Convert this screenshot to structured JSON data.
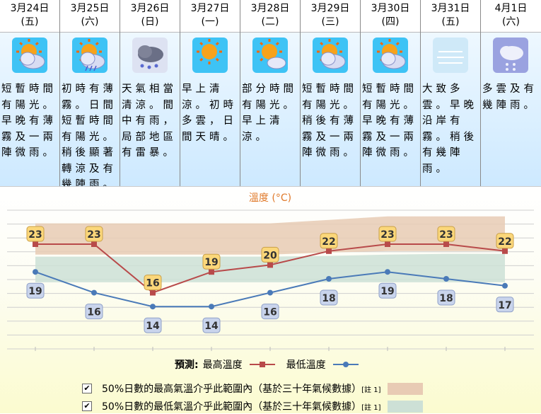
{
  "days": [
    {
      "date": "3月24日",
      "weekday": "(五)",
      "icon": "sunny-periods-cloud-icon",
      "desc": "短暫時間有陽光。早晚有薄霧及一兩陣微雨。"
    },
    {
      "date": "3月25日",
      "weekday": "(六)",
      "icon": "sunny-periods-showers-icon",
      "desc": "初時有薄霧。日間短暫時間有陽光。稍後顯著轉涼及有幾陣雨。"
    },
    {
      "date": "3月26日",
      "weekday": "(日)",
      "icon": "heavy-showers-icon",
      "desc": "天氣相當清涼。間中有雨，局部地區有雷暴。"
    },
    {
      "date": "3月27日",
      "weekday": "(一)",
      "icon": "sunny-icon",
      "desc": "早上清涼。初時多雲，日間天晴。"
    },
    {
      "date": "3月28日",
      "weekday": "(二)",
      "icon": "sunny-periods-icon",
      "desc": "部分時間有陽光。早上清涼。"
    },
    {
      "date": "3月29日",
      "weekday": "(三)",
      "icon": "sunny-periods-cloud-icon",
      "desc": "短暫時間有陽光。稍後有薄霧及一兩陣微雨。"
    },
    {
      "date": "3月30日",
      "weekday": "(四)",
      "icon": "sunny-periods-cloud-icon",
      "desc": "短暫時間有陽光。早晚有薄霧及一兩陣微雨。"
    },
    {
      "date": "3月31日",
      "weekday": "(五)",
      "icon": "mist-icon",
      "desc": "大致多雲。早晚沿岸有霧。稍後有幾陣雨。"
    },
    {
      "date": "4月1日",
      "weekday": "(六)",
      "icon": "cloudy-showers-icon",
      "desc": "多雲及有幾陣雨。"
    }
  ],
  "chart_data": {
    "type": "line",
    "title": "溫度 (°C)",
    "x": [
      "3月24日",
      "3月25日",
      "3月26日",
      "3月27日",
      "3月28日",
      "3月29日",
      "3月30日",
      "3月31日",
      "4月1日"
    ],
    "series": [
      {
        "name": "最高溫度",
        "color": "#b84a4a",
        "values": [
          23,
          23,
          16,
          19,
          20,
          22,
          23,
          23,
          22
        ]
      },
      {
        "name": "最低溫度",
        "color": "#4a7ab8",
        "values": [
          19,
          16,
          14,
          14,
          16,
          18,
          19,
          18,
          17
        ]
      }
    ],
    "bands": [
      {
        "label": "50%日數的最高氣溫介乎此範圍內（基於三十年氣候數據）",
        "color": "#e8cbb4"
      },
      {
        "label": "50%日數的最低氣溫介乎此範圍內（基於三十年氣候數據）",
        "color": "#cde0d6"
      }
    ],
    "legend_prefix": "預測:",
    "note": "[註 1]",
    "check": "✔",
    "grid": true
  }
}
